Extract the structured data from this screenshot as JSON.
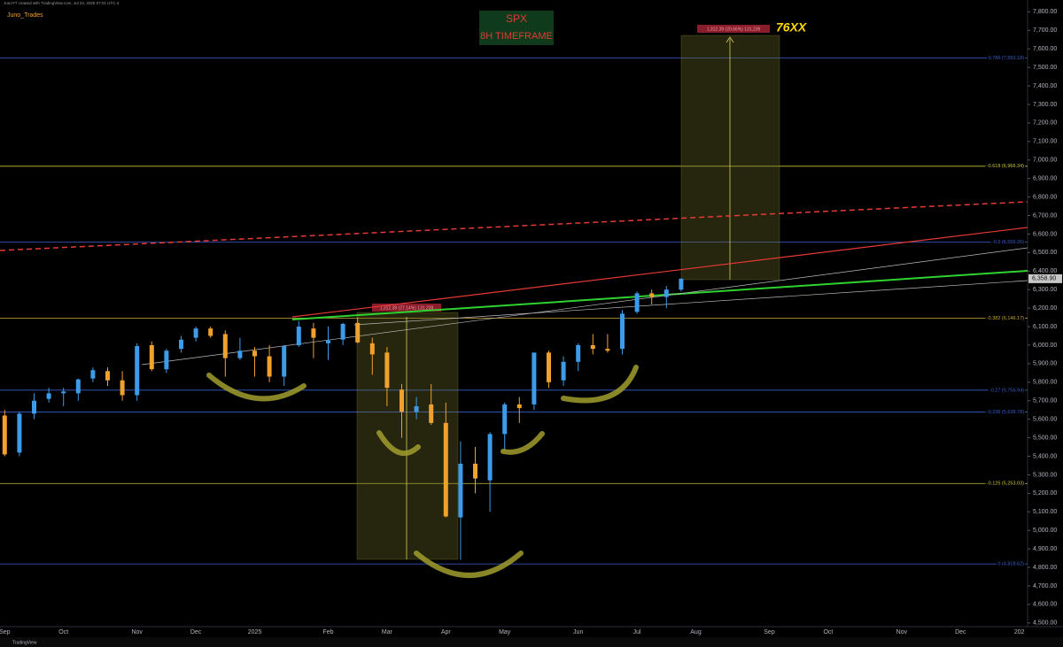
{
  "header": {
    "caption": "JunoYT created with TradingView.com, Jul 24, 2025 07:01 UTC-4",
    "author": "Juno_Trades"
  },
  "chart_data": {
    "type": "candlestick",
    "title": "SPX",
    "subtitle": "8H TIMEFRAME",
    "annotation": "76XX",
    "categories": [
      "Sep",
      null,
      null,
      null,
      "Oct",
      null,
      null,
      null,
      null,
      "Nov",
      null,
      null,
      null,
      "Dec",
      null,
      null,
      null,
      "2025",
      null,
      null,
      null,
      null,
      "Feb",
      null,
      null,
      null,
      "Mar",
      null,
      null,
      null,
      "Apr",
      null,
      null,
      null,
      "May",
      null,
      null,
      null,
      null,
      "Jun",
      null,
      null,
      null,
      "Jul",
      null,
      null,
      null,
      "Aug",
      null,
      null,
      null,
      null,
      "Sep",
      null,
      null,
      null,
      "Oct",
      null,
      null,
      null,
      null,
      "Nov",
      null,
      null,
      null,
      "Dec",
      null,
      null,
      null,
      "202"
    ],
    "open": [
      5620,
      5420,
      5630,
      5710,
      5740,
      5740,
      5820,
      5860,
      5810,
      5730,
      6000,
      5870,
      5980,
      6040,
      6090,
      6060,
      5930,
      5970,
      5940,
      5830,
      6000,
      6090,
      6010,
      6030,
      6120,
      6010,
      5960,
      5760,
      5640,
      5680,
      5580,
      5070,
      5360,
      5270,
      5520,
      5680,
      5680,
      5960,
      5810,
      5910,
      6000,
      5980,
      5980,
      6180,
      6280,
      6260,
      6300,
      null,
      null,
      null,
      null,
      null,
      null,
      null,
      null,
      null,
      null,
      null,
      null,
      null,
      null,
      null,
      null,
      null,
      null,
      null,
      null,
      null,
      null,
      null
    ],
    "high": [
      5650,
      5640,
      5740,
      5770,
      5770,
      5820,
      5880,
      5880,
      5860,
      6010,
      6020,
      5980,
      6050,
      6100,
      6100,
      6080,
      6040,
      5990,
      6000,
      6000,
      6130,
      6120,
      6100,
      6120,
      6150,
      6040,
      5990,
      5790,
      5720,
      5790,
      5690,
      5480,
      5450,
      5530,
      5690,
      5720,
      5960,
      5970,
      5940,
      6010,
      6060,
      6060,
      6190,
      6290,
      6300,
      6320,
      6360,
      null,
      null,
      null,
      null,
      null,
      null,
      null,
      null,
      null,
      null,
      null,
      null,
      null,
      null,
      null,
      null,
      null,
      null,
      null,
      null,
      null,
      null,
      null
    ],
    "low": [
      5400,
      5400,
      5600,
      5690,
      5670,
      5700,
      5800,
      5780,
      5700,
      5700,
      5860,
      5850,
      5960,
      6020,
      6040,
      5830,
      5920,
      5830,
      5800,
      5780,
      5990,
      5930,
      5920,
      6000,
      6010,
      5840,
      5670,
      5500,
      5600,
      5570,
      5070,
      4840,
      5200,
      5100,
      5430,
      5580,
      5650,
      5770,
      5780,
      5860,
      5950,
      5960,
      5950,
      6170,
      6220,
      6200,
      6290,
      null,
      null,
      null,
      null,
      null,
      null,
      null,
      null,
      null,
      null,
      null,
      null,
      null,
      null,
      null,
      null,
      null,
      null,
      null,
      null,
      null,
      null,
      null
    ],
    "close": [
      5410,
      5630,
      5700,
      5740,
      5750,
      5815,
      5865,
      5810,
      5730,
      5995,
      5870,
      5970,
      6030,
      6090,
      6050,
      5930,
      5970,
      5940,
      5830,
      5995,
      6100,
      6040,
      6025,
      6115,
      6015,
      5950,
      5770,
      5640,
      5670,
      5580,
      5075,
      5360,
      5280,
      5520,
      5680,
      5660,
      5960,
      5800,
      5910,
      6000,
      5980,
      5970,
      6170,
      6280,
      6260,
      6300,
      6359,
      null,
      null,
      null,
      null,
      null,
      null,
      null,
      null,
      null,
      null,
      null,
      null,
      null,
      null,
      null,
      null,
      null,
      null,
      null,
      null,
      null,
      null,
      null
    ],
    "up_color": "#3d9be9",
    "down_color": "#f0a02c",
    "ylim": [
      4480,
      7840
    ],
    "yticks": [
      {
        "value": 4500,
        "label": "4,500.00"
      },
      {
        "value": 4600,
        "label": "4,600.00"
      },
      {
        "value": 4700,
        "label": "4,700.00"
      },
      {
        "value": 4800,
        "label": "4,800.00"
      },
      {
        "value": 4900,
        "label": "4,900.00"
      },
      {
        "value": 5000,
        "label": "5,000.00"
      },
      {
        "value": 5100,
        "label": "5,100.00"
      },
      {
        "value": 5200,
        "label": "5,200.00"
      },
      {
        "value": 5300,
        "label": "5,300.00"
      },
      {
        "value": 5400,
        "label": "5,400.00"
      },
      {
        "value": 5500,
        "label": "5,500.00"
      },
      {
        "value": 5600,
        "label": "5,600.00"
      },
      {
        "value": 5700,
        "label": "5,700.00"
      },
      {
        "value": 5800,
        "label": "5,800.00"
      },
      {
        "value": 5900,
        "label": "5,900.00"
      },
      {
        "value": 6000,
        "label": "6,000.00"
      },
      {
        "value": 6100,
        "label": "6,100.00"
      },
      {
        "value": 6200,
        "label": "6,200.00"
      },
      {
        "value": 6300,
        "label": "6,300.00"
      },
      {
        "value": 6400,
        "label": "6,400.00"
      },
      {
        "value": 6500,
        "label": "6,500.00"
      },
      {
        "value": 6600,
        "label": "6,600.00"
      },
      {
        "value": 6700,
        "label": "6,700.00"
      },
      {
        "value": 6800,
        "label": "6,800.00"
      },
      {
        "value": 6900,
        "label": "6,900.00"
      },
      {
        "value": 7000,
        "label": "7,000.00"
      },
      {
        "value": 7100,
        "label": "7,100.00"
      },
      {
        "value": 7200,
        "label": "7,200.00"
      },
      {
        "value": 7300,
        "label": "7,300.00"
      },
      {
        "value": 7400,
        "label": "7,400.00"
      },
      {
        "value": 7500,
        "label": "7,500.00"
      },
      {
        "value": 7600,
        "label": "7,600.00"
      },
      {
        "value": 7700,
        "label": "7,700.00"
      },
      {
        "value": 7800,
        "label": "7,800.00"
      }
    ],
    "last_price": {
      "value": 6358.9,
      "label": "6,358.90"
    },
    "fib_levels": [
      {
        "value": 7550.18,
        "label": "0.786 (7,550.18)",
        "color": "#3a5fd0"
      },
      {
        "value": 6966.34,
        "label": "-0.618 (6,966.34)",
        "color": "#c9c23a"
      },
      {
        "value": 6556.26,
        "label": "-0.5 (6,556.26)",
        "color": "#3a5fd0"
      },
      {
        "value": 6146.17,
        "label": "-0.382 (6,146.17)",
        "color": "#c9a83a"
      },
      {
        "value": 5756.94,
        "label": "-0.27 (5,756.94)",
        "color": "#3a5fd0"
      },
      {
        "value": 5638.78,
        "label": "-0.236 (5,638.78)",
        "color": "#3a5fd0"
      },
      {
        "value": 5253.03,
        "label": "-0.125 (5,253.03)",
        "color": "#c9c23a"
      },
      {
        "value": 4818.62,
        "label": "0 (4,818.62)",
        "color": "#3a5fd0"
      }
    ],
    "measures": [
      {
        "label": "1,312.39 (27.14%) 131,239"
      },
      {
        "label": "1,312.39 (20.66%) 131,239"
      }
    ],
    "grid": false
  },
  "footer": {
    "brand": "TradingView"
  }
}
